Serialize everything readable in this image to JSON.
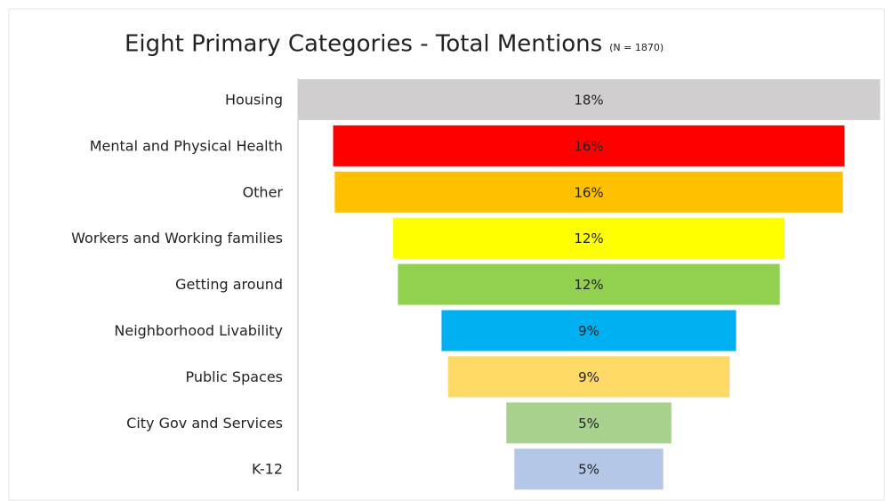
{
  "chart_data": {
    "type": "funnel",
    "title": "Eight Primary Categories - Total Mentions",
    "subtitle": "(N = 1870)",
    "categories": [
      "Housing",
      "Mental and Physical Health",
      "Other",
      "Workers and Working families",
      "Getting around",
      "Neighborhood Livability",
      "Public Spaces",
      "City Gov and Services",
      "K-12"
    ],
    "values": [
      18,
      15.8,
      15.7,
      12.1,
      11.8,
      9.1,
      8.7,
      5.1,
      4.6
    ],
    "value_labels": [
      "18%",
      "16%",
      "16%",
      "12%",
      "12%",
      "9%",
      "9%",
      "5%",
      "5%"
    ],
    "colors": [
      "#d0cece",
      "#ff0000",
      "#ffc000",
      "#ffff00",
      "#92d050",
      "#00b0f0",
      "#ffd966",
      "#a9d18e",
      "#b4c7e7"
    ]
  }
}
